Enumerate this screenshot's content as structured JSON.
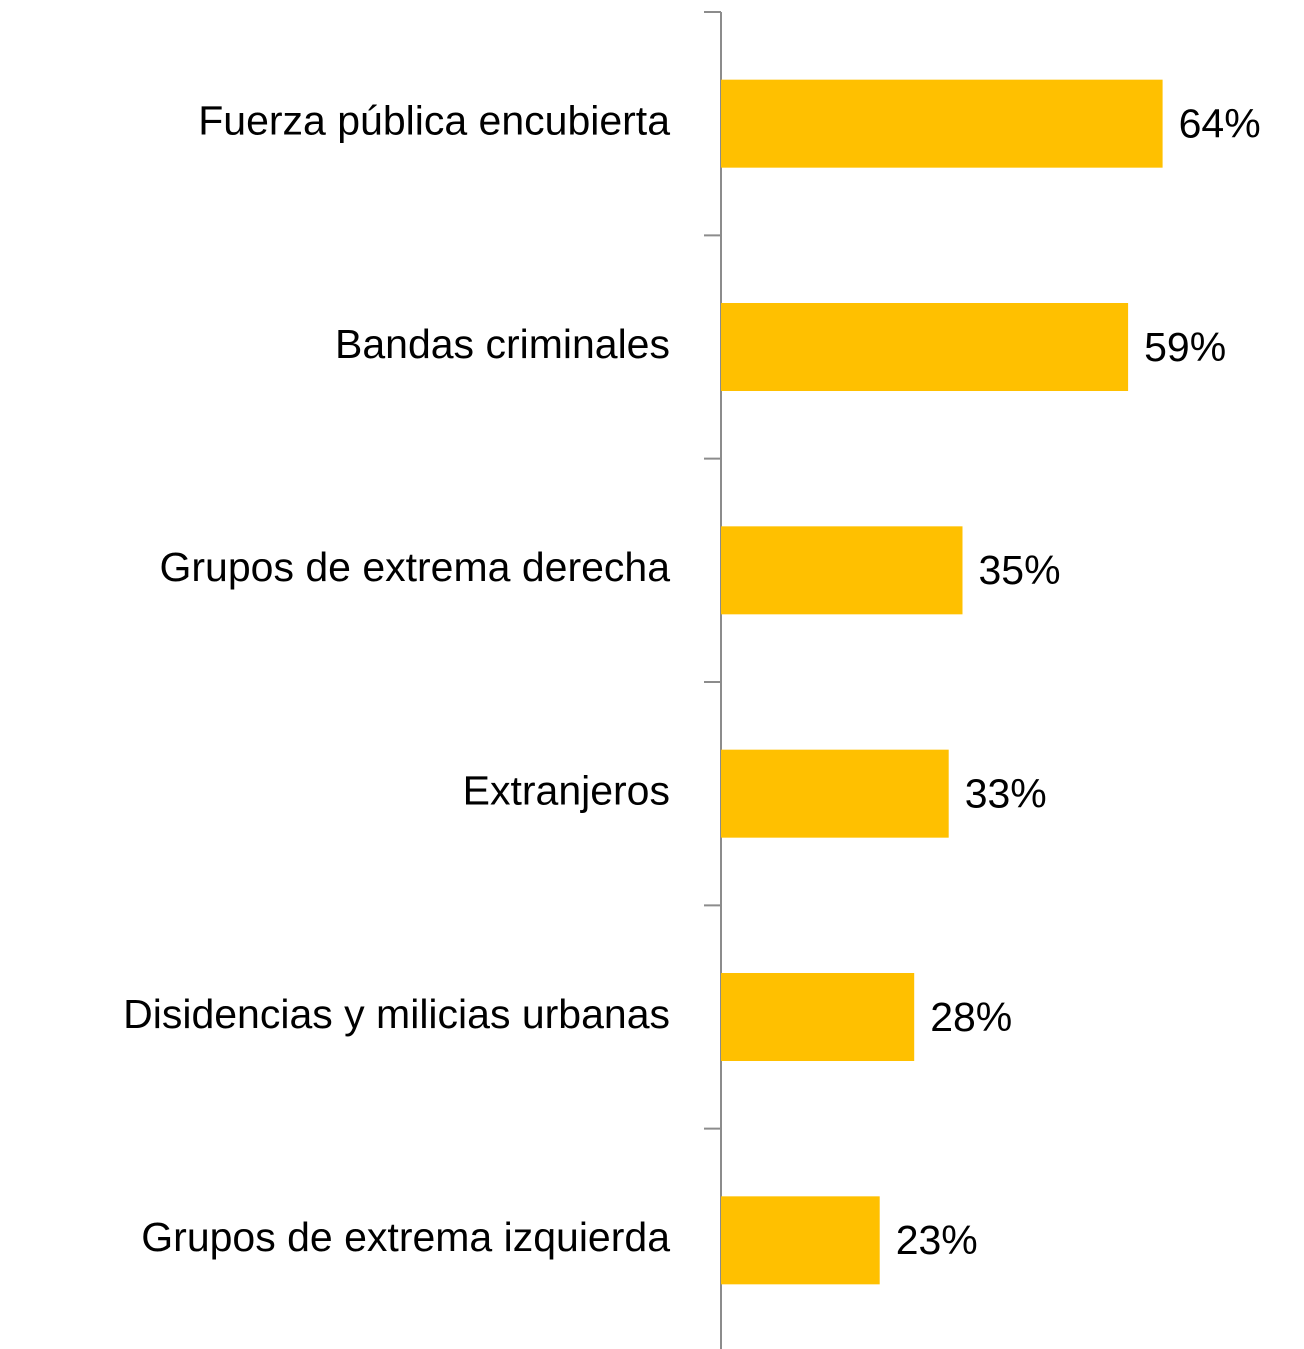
{
  "chart_data": {
    "type": "barh",
    "categories": [
      "Fuerza pública encubierta",
      "Bandas criminales",
      "Grupos de extrema derecha",
      "Extranjeros",
      "Disidencias y milicias urbanas",
      "Grupos de extrema izquierda"
    ],
    "values": [
      64,
      59,
      35,
      33,
      28,
      23
    ],
    "value_labels": [
      "64%",
      "59%",
      "35%",
      "33%",
      "28%",
      "23%"
    ],
    "color": "#ffc000"
  }
}
